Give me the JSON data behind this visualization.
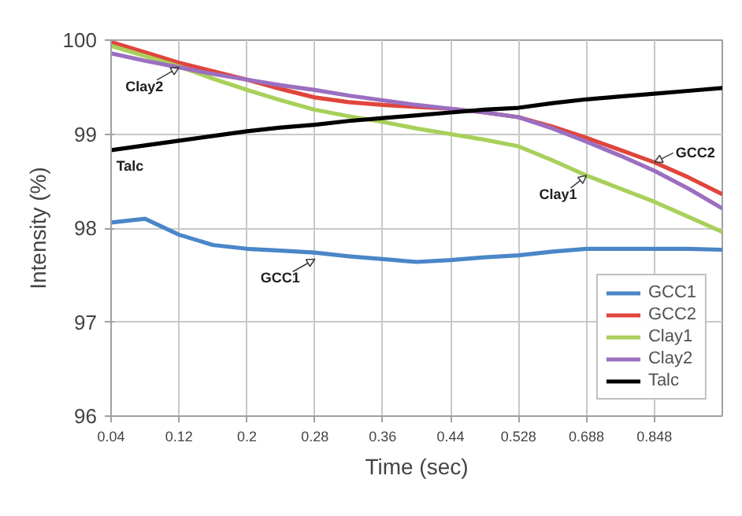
{
  "chart_data": {
    "type": "line",
    "xlabel": "Time (sec)",
    "ylabel": "Intensity (%)",
    "categories": [
      "0.04",
      null,
      "0.12",
      null,
      "0.2",
      null,
      "0.28",
      null,
      "0.36",
      null,
      "0.44",
      null,
      "0.528",
      null,
      "0.688",
      null,
      "0.848",
      null,
      null
    ],
    "series": [
      {
        "name": "GCC1",
        "color": "#4a86c8",
        "values": [
          98.06,
          98.1,
          97.93,
          97.82,
          97.78,
          97.76,
          97.74,
          97.7,
          97.67,
          97.64,
          97.66,
          97.69,
          97.71,
          97.75,
          97.78,
          97.78,
          97.78,
          97.78,
          97.77
        ]
      },
      {
        "name": "GCC2",
        "color": "#e0453c",
        "values": [
          99.98,
          99.87,
          99.76,
          99.67,
          99.58,
          99.48,
          99.39,
          99.34,
          99.31,
          99.29,
          99.27,
          99.23,
          99.18,
          99.08,
          98.96,
          98.83,
          98.7,
          98.54,
          98.36
        ]
      },
      {
        "name": "Clay1",
        "color": "#a8d05a",
        "values": [
          99.94,
          99.83,
          99.72,
          99.59,
          99.47,
          99.36,
          99.26,
          99.19,
          99.13,
          99.06,
          99.0,
          98.94,
          98.87,
          98.72,
          98.56,
          98.42,
          98.28,
          98.12,
          97.96
        ]
      },
      {
        "name": "Clay2",
        "color": "#9b6fc0",
        "values": [
          99.86,
          99.78,
          99.71,
          99.64,
          99.58,
          99.52,
          99.47,
          99.41,
          99.36,
          99.31,
          99.27,
          99.23,
          99.18,
          99.06,
          98.92,
          98.77,
          98.61,
          98.42,
          98.21
        ]
      },
      {
        "name": "Talc",
        "color": "#000000",
        "values": [
          98.83,
          98.88,
          98.93,
          98.98,
          99.03,
          99.07,
          99.1,
          99.14,
          99.17,
          99.2,
          99.23,
          99.26,
          99.28,
          99.33,
          99.37,
          99.4,
          99.43,
          99.46,
          99.49
        ]
      }
    ],
    "ylim": [
      96,
      100
    ],
    "yticks": [
      96,
      97,
      98,
      99,
      100
    ],
    "grid": true,
    "legend": "bottom right",
    "marker": "none",
    "line_style": "solid",
    "annotations": [
      {
        "text": "Clay2",
        "x": "0.12",
        "y": 99.71
      },
      {
        "text": "Talc",
        "x": "0.04",
        "y": 98.83
      },
      {
        "text": "GCC2",
        "x": "0.848",
        "y": 98.7
      },
      {
        "text": "Clay1",
        "x": "0.688",
        "y": 98.56
      },
      {
        "text": "GCC1",
        "x": "0.28",
        "y": 97.67
      }
    ]
  }
}
